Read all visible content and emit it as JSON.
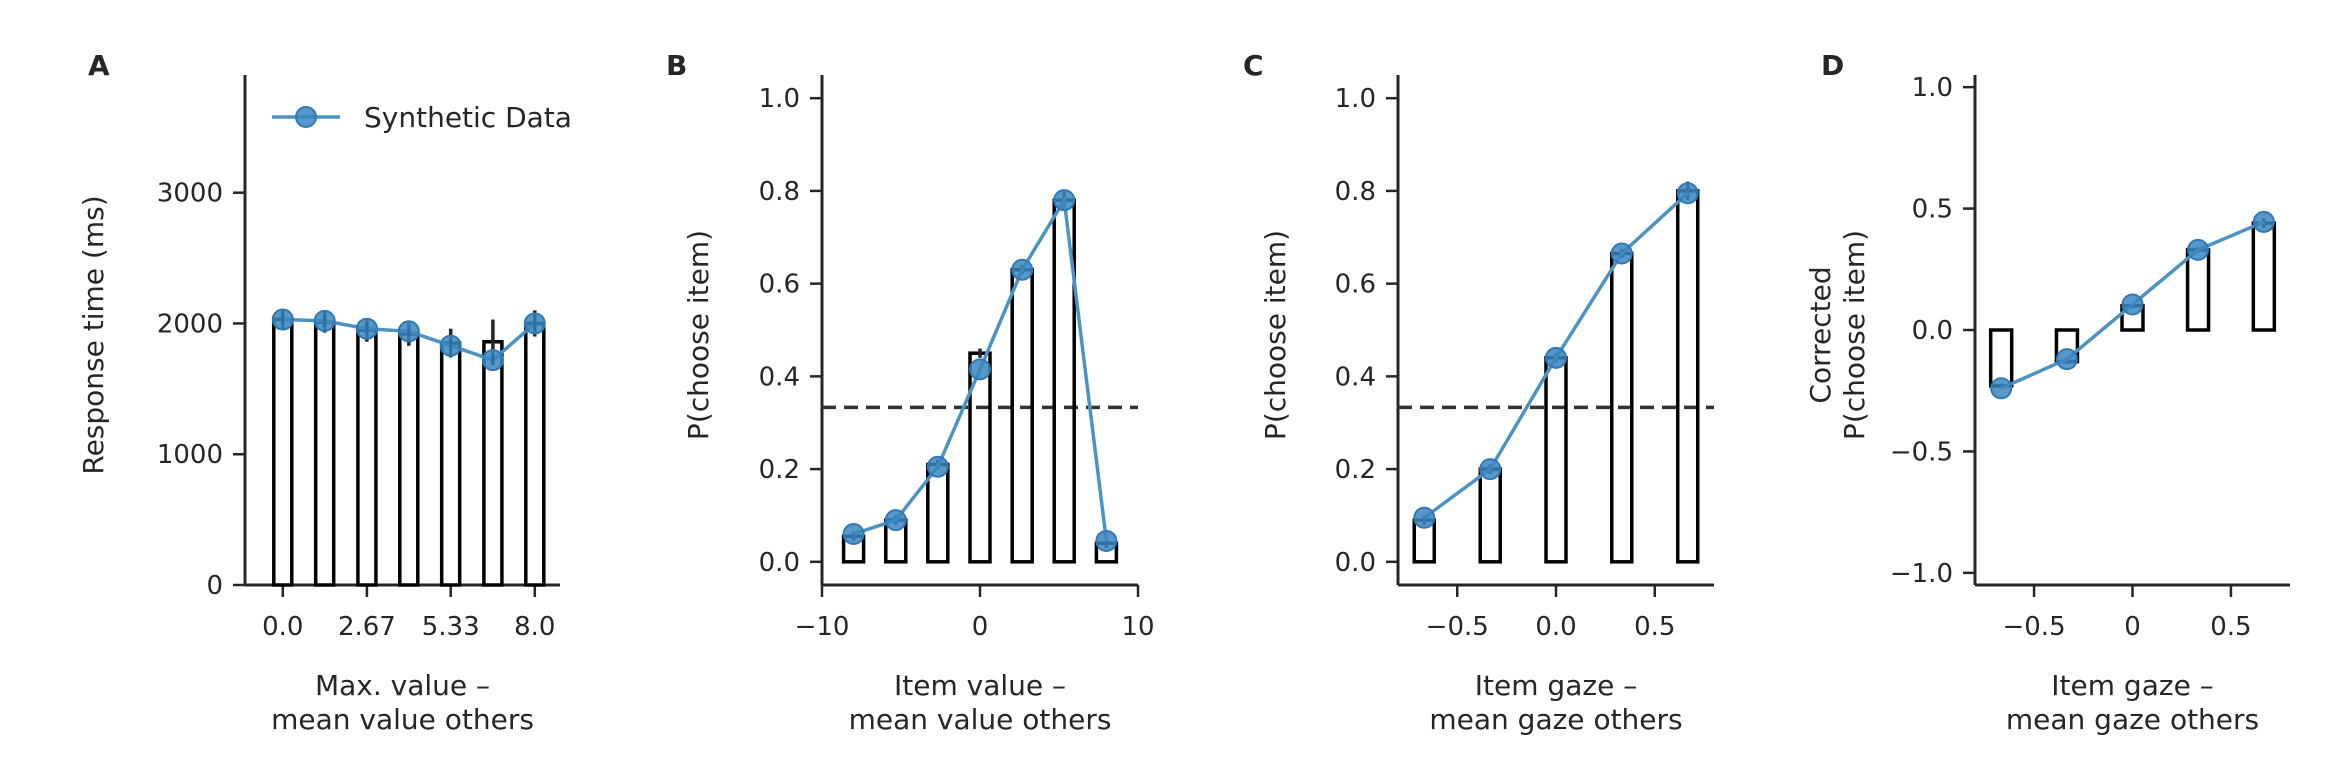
{
  "chart_data": [
    {
      "panel": "A",
      "type": "bar",
      "title": "",
      "xlabel": [
        "Max. value –",
        "mean value others"
      ],
      "ylabel": [
        "Response time (ms)"
      ],
      "ylim": [
        0,
        3900
      ],
      "yticks": [
        0,
        1000,
        2000,
        3000
      ],
      "ytick_labels": [
        "0",
        "1000",
        "2000",
        "3000"
      ],
      "xlim": [
        -1.2,
        8.8
      ],
      "xticks": [
        0,
        2.67,
        5.33,
        8
      ],
      "xtick_labels": [
        "0.0",
        "2.67",
        "5.33",
        "8.0"
      ],
      "legend": "top-left",
      "bars": {
        "x": [
          0,
          1.33,
          2.67,
          4,
          5.33,
          6.67,
          8
        ],
        "values": [
          2030,
          2010,
          1950,
          1920,
          1850,
          1860,
          2000
        ],
        "errors": [
          70,
          80,
          90,
          90,
          110,
          170,
          100
        ]
      },
      "series": [
        {
          "name": "Synthetic Data",
          "x": [
            0,
            1.33,
            2.67,
            4,
            5.33,
            6.67,
            8
          ],
          "values": [
            2030,
            2020,
            1960,
            1940,
            1830,
            1720,
            2000
          ],
          "errors": [
            40,
            40,
            40,
            40,
            40,
            40,
            60
          ]
        }
      ]
    },
    {
      "panel": "B",
      "type": "bar",
      "title": "",
      "xlabel": [
        "Item value –",
        "mean value others"
      ],
      "ylabel": [
        "P(choose item)"
      ],
      "ylim": [
        -0.05,
        1.05
      ],
      "yticks": [
        0,
        0.2,
        0.4,
        0.6,
        0.8,
        1.0
      ],
      "ytick_labels": [
        "0.0",
        "0.2",
        "0.4",
        "0.6",
        "0.8",
        "1.0"
      ],
      "xlim": [
        -10,
        10
      ],
      "xticks": [
        -10,
        0,
        10
      ],
      "xtick_labels": [
        "−10",
        "0",
        "10"
      ],
      "chance_level": 0.333,
      "bars": {
        "x": [
          -8,
          -5.33,
          -2.67,
          0,
          2.67,
          5.33,
          8
        ],
        "values": [
          0.055,
          0.09,
          0.21,
          0.45,
          0.63,
          0.78,
          0.04
        ],
        "errors": [
          0.01,
          0.01,
          0.01,
          0.01,
          0.01,
          0.02,
          0.01
        ]
      },
      "series": [
        {
          "name": "Synthetic Data",
          "x": [
            -8,
            -5.33,
            -2.67,
            0,
            2.67,
            5.33,
            8
          ],
          "values": [
            0.06,
            0.09,
            0.205,
            0.415,
            0.63,
            0.78,
            0.045
          ]
        }
      ]
    },
    {
      "panel": "C",
      "type": "bar",
      "title": "",
      "xlabel": [
        "Item gaze –",
        "mean gaze others"
      ],
      "ylabel": [
        "P(choose item)"
      ],
      "ylim": [
        -0.05,
        1.05
      ],
      "yticks": [
        0,
        0.2,
        0.4,
        0.6,
        0.8,
        1.0
      ],
      "ytick_labels": [
        "0.0",
        "0.2",
        "0.4",
        "0.6",
        "0.8",
        "1.0"
      ],
      "xlim": [
        -0.8,
        0.8
      ],
      "xticks": [
        -0.5,
        0,
        0.5
      ],
      "xtick_labels": [
        "−0.5",
        "0.0",
        "0.5"
      ],
      "chance_level": 0.333,
      "bars": {
        "x": [
          -0.667,
          -0.333,
          0,
          0.333,
          0.667
        ],
        "values": [
          0.09,
          0.2,
          0.44,
          0.665,
          0.8
        ],
        "errors": [
          0.01,
          0.01,
          0.01,
          0.01,
          0.02
        ]
      },
      "series": [
        {
          "name": "Synthetic Data",
          "x": [
            -0.667,
            -0.333,
            0,
            0.333,
            0.667
          ],
          "values": [
            0.095,
            0.2,
            0.44,
            0.665,
            0.795
          ]
        }
      ]
    },
    {
      "panel": "D",
      "type": "bar",
      "title": "",
      "xlabel": [
        "Item gaze –",
        "mean gaze others"
      ],
      "ylabel": [
        "Corrected",
        "P(choose item)"
      ],
      "ylim": [
        -1.05,
        1.05
      ],
      "yticks": [
        -1.0,
        -0.5,
        0,
        0.5,
        1.0
      ],
      "ytick_labels": [
        "−1.0",
        "−0.5",
        "0.0",
        "0.5",
        "1.0"
      ],
      "xlim": [
        -0.8,
        0.8
      ],
      "xticks": [
        -0.5,
        0,
        0.5
      ],
      "xtick_labels": [
        "−0.5",
        "0",
        "0.5"
      ],
      "bars": {
        "x": [
          -0.667,
          -0.333,
          0,
          0.333,
          0.667
        ],
        "values": [
          -0.23,
          -0.13,
          0.1,
          0.33,
          0.44
        ],
        "errors": [
          0.01,
          0.01,
          0.01,
          0.01,
          0.02
        ]
      },
      "series": [
        {
          "name": "Synthetic Data",
          "x": [
            -0.667,
            -0.333,
            0,
            0.333,
            0.667
          ],
          "values": [
            -0.24,
            -0.12,
            0.105,
            0.33,
            0.445
          ]
        }
      ]
    }
  ]
}
